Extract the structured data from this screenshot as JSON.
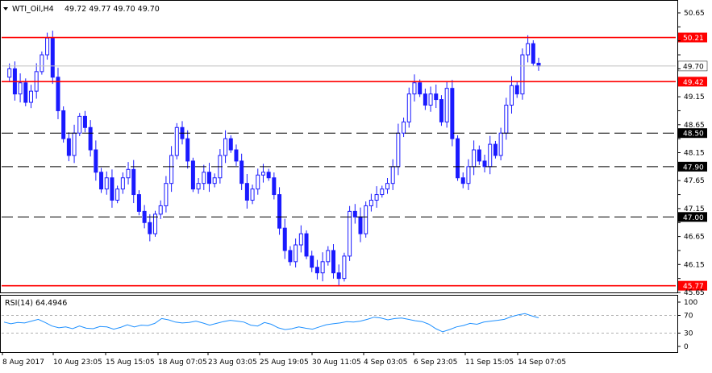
{
  "header": {
    "symbol": "WTI_Oil,H4",
    "ohlc": "49.72 49.77 49.70 49.70"
  },
  "rsi_header": {
    "label": "RSI(14) 64.4946"
  },
  "colors": {
    "candle": "#1a1aff",
    "resistance": "#ff0000",
    "support": "#000000",
    "rsi_line": "#1e90ff",
    "level_bg": "#ff0000",
    "current_price_bg": "#ffffff"
  },
  "chart_data": [
    {
      "type": "candlestick",
      "title": "",
      "y_ticks": [
        50.65,
        50.4,
        50.15,
        49.9,
        49.65,
        49.15,
        48.9,
        48.65,
        48.4,
        48.15,
        47.9,
        47.65,
        47.4,
        47.15,
        46.9,
        46.65,
        46.4,
        46.15,
        45.9,
        45.65
      ],
      "y_tick_labels": [
        "50.65",
        "",
        "",
        "",
        "",
        "49.15",
        "",
        "48.65",
        "",
        "48.15",
        "",
        "47.65",
        "",
        "47.15",
        "",
        "46.65",
        "",
        "46.15",
        "",
        "45.65"
      ],
      "ylim": [
        45.65,
        50.65
      ],
      "x_tick_labels": [
        "8 Aug 2017",
        "10 Aug 23:05",
        "15 Aug 15:05",
        "18 Aug 07:05",
        "23 Aug 03:05",
        "25 Aug 19:05",
        "30 Aug 11:05",
        "4 Sep 03:05",
        "6 Sep 23:05",
        "11 Sep 15:05",
        "14 Sep 07:05"
      ],
      "current_price": 49.7,
      "levels": [
        {
          "value": 50.21,
          "label": "50.21",
          "style": "solid",
          "color": "red"
        },
        {
          "value": 49.42,
          "label": "49.42",
          "style": "solid",
          "color": "red"
        },
        {
          "value": 48.5,
          "label": "48.50",
          "style": "dashed",
          "color": "black"
        },
        {
          "value": 47.9,
          "label": "47.90",
          "style": "dashed",
          "color": "black"
        },
        {
          "value": 47.0,
          "label": "47.00",
          "style": "dashed",
          "color": "black"
        },
        {
          "value": 45.77,
          "label": "45.77",
          "style": "solid",
          "color": "red"
        }
      ],
      "current_price_label": "49.70",
      "path": [
        49.5,
        49.65,
        49.2,
        49.4,
        49.05,
        49.25,
        49.6,
        49.9,
        50.2,
        49.5,
        48.9,
        48.4,
        48.1,
        48.5,
        48.8,
        48.6,
        48.2,
        47.8,
        47.5,
        47.7,
        47.3,
        47.5,
        47.7,
        47.85,
        47.4,
        47.1,
        46.9,
        46.7,
        47.05,
        47.2,
        47.6,
        48.1,
        48.6,
        48.4,
        48.0,
        47.5,
        47.6,
        47.8,
        47.6,
        47.7,
        48.1,
        48.4,
        48.2,
        48.0,
        47.6,
        47.3,
        47.5,
        47.75,
        47.8,
        47.7,
        47.4,
        46.8,
        46.4,
        46.2,
        46.5,
        46.7,
        46.3,
        46.1,
        46.0,
        46.2,
        46.4,
        46.0,
        45.9,
        46.3,
        47.1,
        47.0,
        46.7,
        47.2,
        47.3,
        47.4,
        47.5,
        47.6,
        47.9,
        48.5,
        48.7,
        49.2,
        49.4,
        49.2,
        49.0,
        49.2,
        49.1,
        48.7,
        49.3,
        48.4,
        47.7,
        47.6,
        47.9,
        48.2,
        48.0,
        47.9,
        48.3,
        48.1,
        48.5,
        49.0,
        49.35,
        49.2,
        49.9,
        50.1,
        49.75,
        49.7
      ]
    },
    {
      "type": "line",
      "title": "",
      "series": [
        {
          "name": "RSI(14)",
          "values": [
            55,
            51,
            54,
            53,
            57,
            61,
            54,
            46,
            42,
            44,
            40,
            46,
            41,
            40,
            45,
            44,
            39,
            43,
            49,
            44,
            48,
            47,
            52,
            63,
            60,
            55,
            53,
            54,
            57,
            53,
            48,
            52,
            56,
            59,
            57,
            55,
            48,
            46,
            54,
            50,
            42,
            38,
            40,
            44,
            41,
            39,
            44,
            49,
            51,
            53,
            56,
            55,
            57,
            61,
            66,
            64,
            60,
            63,
            64,
            61,
            58,
            56,
            50,
            40,
            33,
            38,
            44,
            47,
            52,
            50,
            55,
            57,
            59,
            61,
            67,
            71,
            74,
            69,
            64.49
          ]
        }
      ],
      "ylim": [
        0,
        100
      ],
      "y_tick_labels": [
        "100",
        "70",
        "30",
        "0"
      ],
      "reference_lines": [
        70,
        30
      ]
    }
  ]
}
